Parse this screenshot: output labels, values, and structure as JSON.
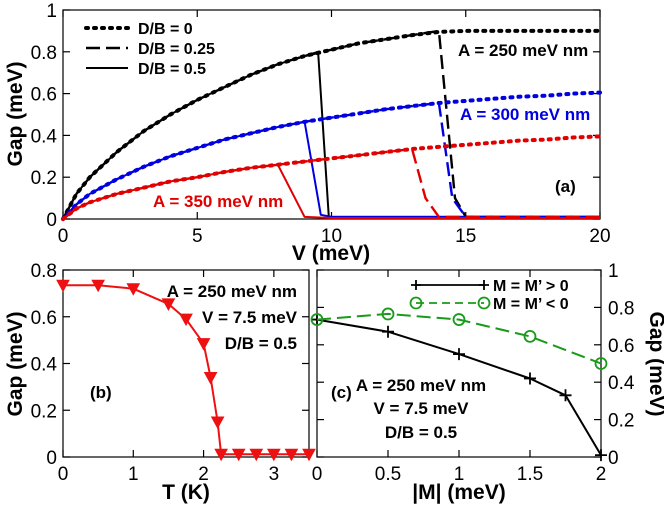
{
  "chart_data": [
    {
      "id": "a",
      "type": "line",
      "panel_label": "(a)",
      "xlabel": "V (meV)",
      "ylabel": "Gap (meV)",
      "xlim": [
        0,
        20
      ],
      "ylim": [
        0,
        1
      ],
      "xticks": [
        0,
        5,
        10,
        15,
        20
      ],
      "yticks": [
        0,
        0.2,
        0.4,
        0.6,
        0.8,
        1
      ],
      "ytick_labels": [
        "0",
        "0.2",
        "0.4",
        "0.6",
        "0.8",
        "1"
      ],
      "legend": [
        {
          "label": "D/B = 0",
          "style": "dotted"
        },
        {
          "label": "D/B = 0.25",
          "style": "dashed"
        },
        {
          "label": "D/B = 0.5",
          "style": "solid"
        }
      ],
      "annotations": [
        {
          "text": "A = 250 meV nm",
          "color": "#000000"
        },
        {
          "text": "A = 300 meV nm",
          "color": "#0000e0"
        },
        {
          "text": "A = 350 meV nm",
          "color": "#e00000"
        }
      ],
      "series": [
        {
          "name": "A=250 D/B=0",
          "color": "#000000",
          "style": "dotted",
          "x": [
            0,
            0.5,
            1,
            2,
            3,
            4,
            5,
            6,
            7,
            8,
            9,
            10,
            11,
            12,
            13,
            14,
            15,
            16,
            17,
            18,
            19,
            20
          ],
          "y": [
            0,
            0.12,
            0.2,
            0.32,
            0.42,
            0.5,
            0.57,
            0.63,
            0.69,
            0.74,
            0.78,
            0.81,
            0.84,
            0.86,
            0.88,
            0.895,
            0.9,
            0.9,
            0.9,
            0.9,
            0.9,
            0.9
          ]
        },
        {
          "name": "A=250 D/B=0.25",
          "color": "#000000",
          "style": "dashed",
          "x": [
            0,
            0.5,
            1,
            2,
            3,
            4,
            5,
            6,
            7,
            8,
            9,
            10,
            11,
            12,
            13,
            14,
            14.6,
            15,
            16,
            18,
            20
          ],
          "y": [
            0,
            0.12,
            0.2,
            0.32,
            0.42,
            0.5,
            0.57,
            0.63,
            0.69,
            0.74,
            0.78,
            0.81,
            0.84,
            0.86,
            0.88,
            0.9,
            0.1,
            0.01,
            0.01,
            0.01,
            0.01
          ]
        },
        {
          "name": "A=250 D/B=0.5",
          "color": "#000000",
          "style": "solid",
          "x": [
            0,
            0.5,
            1,
            2,
            3,
            4,
            5,
            6,
            7,
            8,
            9,
            9.5,
            9.9,
            12,
            15,
            20
          ],
          "y": [
            0,
            0.12,
            0.2,
            0.32,
            0.42,
            0.5,
            0.57,
            0.63,
            0.69,
            0.74,
            0.78,
            0.8,
            0.01,
            0.01,
            0.01,
            0.01
          ]
        },
        {
          "name": "A=300 D/B=0",
          "color": "#0000e0",
          "style": "dotted",
          "x": [
            0,
            0.5,
            1,
            2,
            3,
            4,
            5,
            6,
            7,
            8,
            9,
            10,
            11,
            12,
            13,
            14,
            15,
            16,
            17,
            18,
            19,
            20
          ],
          "y": [
            0,
            0.07,
            0.12,
            0.19,
            0.25,
            0.3,
            0.34,
            0.38,
            0.41,
            0.44,
            0.465,
            0.485,
            0.505,
            0.525,
            0.54,
            0.555,
            0.565,
            0.575,
            0.585,
            0.59,
            0.6,
            0.605
          ]
        },
        {
          "name": "A=300 D/B=0.25",
          "color": "#0000e0",
          "style": "dashed",
          "x": [
            0,
            0.5,
            1,
            2,
            3,
            4,
            5,
            6,
            7,
            8,
            9,
            10,
            11,
            12,
            13,
            14,
            14.5,
            15,
            16,
            18,
            20
          ],
          "y": [
            0,
            0.07,
            0.12,
            0.19,
            0.25,
            0.3,
            0.34,
            0.38,
            0.41,
            0.44,
            0.465,
            0.485,
            0.505,
            0.525,
            0.54,
            0.555,
            0.1,
            0.01,
            0.01,
            0.01,
            0.01
          ]
        },
        {
          "name": "A=300 D/B=0.5",
          "color": "#0000e0",
          "style": "solid",
          "x": [
            0,
            0.5,
            1,
            2,
            3,
            4,
            5,
            6,
            7,
            8,
            9,
            9.6,
            10,
            12,
            15,
            20
          ],
          "y": [
            0,
            0.07,
            0.12,
            0.19,
            0.25,
            0.3,
            0.34,
            0.38,
            0.41,
            0.44,
            0.465,
            0.02,
            0.01,
            0.01,
            0.01,
            0.01
          ]
        },
        {
          "name": "A=350 D/B=0",
          "color": "#e00000",
          "style": "dotted",
          "x": [
            0,
            0.5,
            1,
            2,
            3,
            4,
            5,
            6,
            7,
            8,
            9,
            10,
            11,
            12,
            13,
            14,
            15,
            16,
            17,
            18,
            19,
            20
          ],
          "y": [
            0,
            0.05,
            0.08,
            0.12,
            0.15,
            0.18,
            0.2,
            0.225,
            0.245,
            0.26,
            0.275,
            0.29,
            0.305,
            0.32,
            0.335,
            0.345,
            0.355,
            0.365,
            0.375,
            0.38,
            0.39,
            0.395
          ]
        },
        {
          "name": "A=350 D/B=0.25",
          "color": "#e00000",
          "style": "dashed",
          "x": [
            0,
            0.5,
            1,
            2,
            3,
            4,
            5,
            6,
            7,
            8,
            9,
            10,
            11,
            12,
            13,
            13.5,
            14,
            15,
            16,
            18,
            20
          ],
          "y": [
            0,
            0.05,
            0.08,
            0.12,
            0.15,
            0.18,
            0.2,
            0.225,
            0.245,
            0.26,
            0.275,
            0.29,
            0.305,
            0.32,
            0.335,
            0.1,
            0.01,
            0.01,
            0.01,
            0.01,
            0.01
          ]
        },
        {
          "name": "A=350 D/B=0.5",
          "color": "#e00000",
          "style": "solid",
          "x": [
            0,
            0.5,
            1,
            2,
            3,
            4,
            5,
            6,
            7,
            8,
            9,
            10,
            12,
            15,
            20
          ],
          "y": [
            0,
            0.05,
            0.08,
            0.12,
            0.15,
            0.18,
            0.2,
            0.225,
            0.245,
            0.26,
            0.01,
            0.005,
            0.005,
            0.005,
            0.005
          ]
        }
      ]
    },
    {
      "id": "b",
      "type": "line",
      "panel_label": "(b)",
      "xlabel": "T (K)",
      "ylabel": "Gap (meV)",
      "xlim": [
        0,
        3.5
      ],
      "ylim": [
        0,
        0.8
      ],
      "xticks": [
        0,
        1,
        2,
        3
      ],
      "yticks": [
        0,
        0.2,
        0.4,
        0.6,
        0.8
      ],
      "ytick_labels": [
        "0",
        "0.2",
        "0.4",
        "0.6",
        "0.8"
      ],
      "annotations": [
        {
          "text": "A = 250 meV nm",
          "color": "#000000"
        },
        {
          "text": "V = 7.5 meV",
          "color": "#000000"
        },
        {
          "text": "D/B = 0.5",
          "color": "#000000"
        }
      ],
      "series": [
        {
          "name": "Gap vs T",
          "color": "#ee1111",
          "marker": "triangle-down",
          "x": [
            0,
            0.5,
            1,
            1.5,
            1.75,
            2,
            2.1,
            2.2,
            2.25,
            2.5,
            2.75,
            3,
            3.25,
            3.5
          ],
          "y": [
            0.735,
            0.735,
            0.72,
            0.655,
            0.59,
            0.485,
            0.34,
            0.15,
            0.012,
            0.012,
            0.012,
            0.012,
            0.012,
            0.012
          ]
        }
      ]
    },
    {
      "id": "c",
      "type": "line",
      "panel_label": "(c)",
      "xlabel": "|M| (meV)",
      "ylabel": "Gap (meV)",
      "xlim": [
        0,
        2
      ],
      "ylim": [
        0,
        1
      ],
      "xticks": [
        0,
        0.5,
        1,
        1.5,
        2
      ],
      "yticks": [
        0,
        0.2,
        0.4,
        0.6,
        0.8,
        1
      ],
      "ytick_labels": [
        "0",
        "0.2",
        "0.4",
        "0.6",
        "0.8",
        "1"
      ],
      "legend": [
        {
          "label": "M = M’ > 0",
          "color": "#000000"
        },
        {
          "label": "M = M’ < 0",
          "color": "#1a9a1a"
        }
      ],
      "annotations": [
        {
          "text": "A = 250 meV nm",
          "color": "#000000"
        },
        {
          "text": "V = 7.5 meV",
          "color": "#000000"
        },
        {
          "text": "D/B = 0.5",
          "color": "#000000"
        }
      ],
      "series": [
        {
          "name": "M = M’ > 0",
          "color": "#000000",
          "marker": "plus",
          "style": "solid",
          "x": [
            0,
            0.5,
            1,
            1.5,
            1.75,
            2
          ],
          "y": [
            0.735,
            0.67,
            0.55,
            0.42,
            0.33,
            0.01
          ]
        },
        {
          "name": "M = M’ < 0",
          "color": "#1a9a1a",
          "marker": "circle",
          "style": "dashed",
          "x": [
            0,
            0.5,
            1,
            1.5,
            2
          ],
          "y": [
            0.735,
            0.765,
            0.735,
            0.645,
            0.5
          ]
        }
      ]
    }
  ]
}
